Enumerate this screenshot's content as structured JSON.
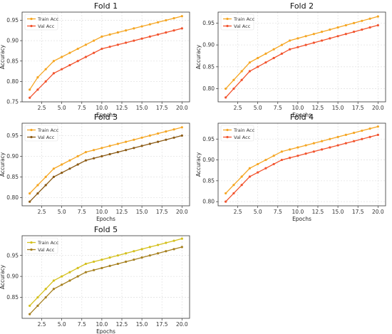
{
  "chart_data": [
    {
      "type": "line",
      "title": "Fold 1",
      "xlabel": "Epochs",
      "ylabel": "Accuracy",
      "xlim": [
        0.05,
        20.95
      ],
      "ylim": [
        0.75,
        0.97
      ],
      "xticks": [
        2.5,
        5.0,
        7.5,
        10.0,
        12.5,
        15.0,
        17.5,
        20.0
      ],
      "xtick_labels": [
        "2.5",
        "5.0",
        "7.5",
        "10.0",
        "12.5",
        "15.0",
        "17.5",
        "20.0"
      ],
      "yticks": [
        0.75,
        0.8,
        0.85,
        0.9,
        0.95
      ],
      "ytick_labels": [
        "0.75",
        "0.80",
        "0.85",
        "0.90",
        "0.95"
      ],
      "grid": true,
      "legend": "top-left",
      "x": [
        1,
        2,
        3,
        4,
        5,
        6,
        7,
        8,
        9,
        10,
        11,
        12,
        13,
        14,
        15,
        16,
        17,
        18,
        19,
        20
      ],
      "series": [
        {
          "name": "Train Acc",
          "color": "#f5a623",
          "values": [
            0.78,
            0.81,
            0.83,
            0.85,
            0.86,
            0.87,
            0.88,
            0.89,
            0.9,
            0.91,
            0.915,
            0.92,
            0.925,
            0.93,
            0.935,
            0.94,
            0.945,
            0.95,
            0.955,
            0.96
          ]
        },
        {
          "name": "Val Acc",
          "color": "#f2532d",
          "values": [
            0.76,
            0.78,
            0.8,
            0.82,
            0.83,
            0.84,
            0.85,
            0.86,
            0.87,
            0.88,
            0.885,
            0.89,
            0.895,
            0.9,
            0.905,
            0.91,
            0.915,
            0.92,
            0.925,
            0.93
          ]
        }
      ]
    },
    {
      "type": "line",
      "title": "Fold 2",
      "xlabel": "Epochs",
      "ylabel": "Accuracy",
      "xlim": [
        0.05,
        20.95
      ],
      "ylim": [
        0.77,
        0.975
      ],
      "xticks": [
        2.5,
        5.0,
        7.5,
        10.0,
        12.5,
        15.0,
        17.5,
        20.0
      ],
      "xtick_labels": [
        "2.5",
        "5.0",
        "7.5",
        "10.0",
        "12.5",
        "15.0",
        "17.5",
        "20.0"
      ],
      "yticks": [
        0.8,
        0.85,
        0.9,
        0.95
      ],
      "ytick_labels": [
        "0.80",
        "0.85",
        "0.90",
        "0.95"
      ],
      "grid": true,
      "legend": "top-left",
      "x": [
        1,
        2,
        3,
        4,
        5,
        6,
        7,
        8,
        9,
        10,
        11,
        12,
        13,
        14,
        15,
        16,
        17,
        18,
        19,
        20
      ],
      "series": [
        {
          "name": "Train Acc",
          "color": "#f5a623",
          "values": [
            0.8,
            0.82,
            0.84,
            0.86,
            0.87,
            0.88,
            0.89,
            0.9,
            0.91,
            0.915,
            0.92,
            0.925,
            0.93,
            0.935,
            0.94,
            0.945,
            0.95,
            0.955,
            0.96,
            0.965
          ]
        },
        {
          "name": "Val Acc",
          "color": "#f2532d",
          "values": [
            0.78,
            0.8,
            0.82,
            0.84,
            0.85,
            0.86,
            0.87,
            0.88,
            0.89,
            0.895,
            0.9,
            0.905,
            0.91,
            0.915,
            0.92,
            0.925,
            0.93,
            0.935,
            0.94,
            0.945
          ]
        }
      ]
    },
    {
      "type": "line",
      "title": "Fold 3",
      "xlabel": "Epochs",
      "ylabel": "Accuracy",
      "xlim": [
        0.05,
        20.95
      ],
      "ylim": [
        0.78,
        0.98
      ],
      "xticks": [
        2.5,
        5.0,
        7.5,
        10.0,
        12.5,
        15.0,
        17.5,
        20.0
      ],
      "xtick_labels": [
        "2.5",
        "5.0",
        "7.5",
        "10.0",
        "12.5",
        "15.0",
        "17.5",
        "20.0"
      ],
      "yticks": [
        0.8,
        0.85,
        0.9,
        0.95
      ],
      "ytick_labels": [
        "0.80",
        "0.85",
        "0.90",
        "0.95"
      ],
      "grid": true,
      "legend": "top-left",
      "x": [
        1,
        2,
        3,
        4,
        5,
        6,
        7,
        8,
        9,
        10,
        11,
        12,
        13,
        14,
        15,
        16,
        17,
        18,
        19,
        20
      ],
      "series": [
        {
          "name": "Train Acc",
          "color": "#f5a623",
          "values": [
            0.81,
            0.83,
            0.85,
            0.87,
            0.88,
            0.89,
            0.9,
            0.91,
            0.915,
            0.92,
            0.925,
            0.93,
            0.935,
            0.94,
            0.945,
            0.95,
            0.955,
            0.96,
            0.965,
            0.97
          ]
        },
        {
          "name": "Val Acc",
          "color": "#8b5a14",
          "values": [
            0.79,
            0.81,
            0.83,
            0.85,
            0.86,
            0.87,
            0.88,
            0.89,
            0.895,
            0.9,
            0.905,
            0.91,
            0.915,
            0.92,
            0.925,
            0.93,
            0.935,
            0.94,
            0.945,
            0.95
          ]
        }
      ]
    },
    {
      "type": "line",
      "title": "Fold 4",
      "xlabel": "Epochs",
      "ylabel": "Accuracy",
      "xlim": [
        0.05,
        20.95
      ],
      "ylim": [
        0.79,
        0.988
      ],
      "xticks": [
        2.5,
        5.0,
        7.5,
        10.0,
        12.5,
        15.0,
        17.5,
        20.0
      ],
      "xtick_labels": [
        "2.5",
        "5.0",
        "7.5",
        "10.0",
        "12.5",
        "15.0",
        "17.5",
        "20.0"
      ],
      "yticks": [
        0.8,
        0.85,
        0.9,
        0.95
      ],
      "ytick_labels": [
        "0.80",
        "0.85",
        "0.90",
        "0.95"
      ],
      "grid": true,
      "legend": "top-left",
      "x": [
        1,
        2,
        3,
        4,
        5,
        6,
        7,
        8,
        9,
        10,
        11,
        12,
        13,
        14,
        15,
        16,
        17,
        18,
        19,
        20
      ],
      "series": [
        {
          "name": "Train Acc",
          "color": "#f5a623",
          "values": [
            0.82,
            0.84,
            0.86,
            0.88,
            0.89,
            0.9,
            0.91,
            0.92,
            0.925,
            0.93,
            0.935,
            0.94,
            0.945,
            0.95,
            0.955,
            0.96,
            0.965,
            0.97,
            0.975,
            0.98
          ]
        },
        {
          "name": "Val Acc",
          "color": "#f2532d",
          "values": [
            0.8,
            0.82,
            0.84,
            0.86,
            0.87,
            0.88,
            0.89,
            0.9,
            0.905,
            0.91,
            0.915,
            0.92,
            0.925,
            0.93,
            0.935,
            0.94,
            0.945,
            0.95,
            0.955,
            0.96
          ]
        }
      ]
    },
    {
      "type": "line",
      "title": "Fold 5",
      "xlabel": "Epochs",
      "ylabel": "Accuracy",
      "xlim": [
        0.05,
        20.95
      ],
      "ylim": [
        0.8,
        0.997
      ],
      "xticks": [
        2.5,
        5.0,
        7.5,
        10.0,
        12.5,
        15.0,
        17.5,
        20.0
      ],
      "xtick_labels": [
        "2.5",
        "5.0",
        "7.5",
        "10.0",
        "12.5",
        "15.0",
        "17.5",
        "20.0"
      ],
      "yticks": [
        0.85,
        0.9,
        0.95
      ],
      "ytick_labels": [
        "0.85",
        "0.90",
        "0.95"
      ],
      "grid": true,
      "legend": "top-left",
      "x": [
        1,
        2,
        3,
        4,
        5,
        6,
        7,
        8,
        9,
        10,
        11,
        12,
        13,
        14,
        15,
        16,
        17,
        18,
        19,
        20
      ],
      "series": [
        {
          "name": "Train Acc",
          "color": "#d4c01c",
          "values": [
            0.83,
            0.85,
            0.87,
            0.89,
            0.9,
            0.91,
            0.92,
            0.93,
            0.935,
            0.94,
            0.945,
            0.95,
            0.955,
            0.96,
            0.965,
            0.97,
            0.975,
            0.98,
            0.985,
            0.99
          ]
        },
        {
          "name": "Val Acc",
          "color": "#a6801f",
          "values": [
            0.81,
            0.83,
            0.85,
            0.87,
            0.88,
            0.89,
            0.9,
            0.91,
            0.915,
            0.92,
            0.925,
            0.93,
            0.935,
            0.94,
            0.945,
            0.95,
            0.955,
            0.96,
            0.965,
            0.97
          ]
        }
      ]
    }
  ]
}
